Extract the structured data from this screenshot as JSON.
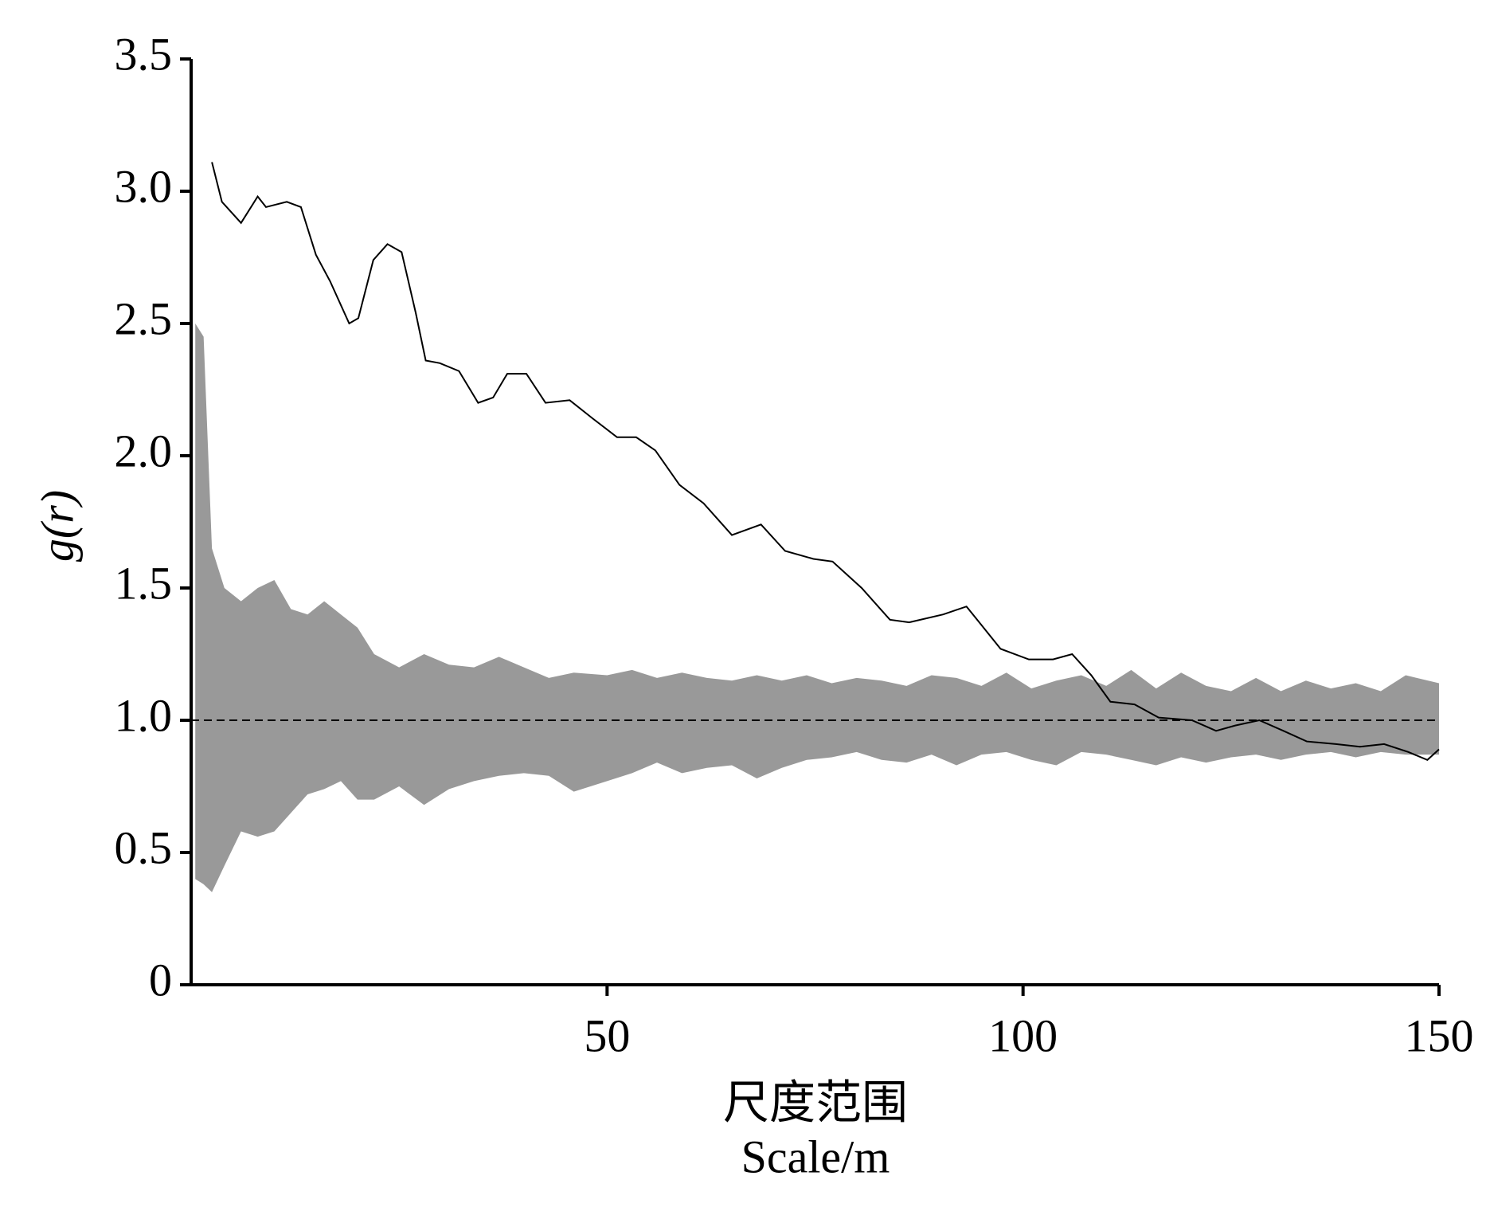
{
  "chart_data": {
    "type": "line",
    "y_label": "g(r)",
    "x_label": [
      "尺度范围",
      "Scale/m"
    ],
    "xlim": [
      0,
      150
    ],
    "xticks": [
      50,
      100,
      150
    ],
    "ylim": [
      0,
      3.5
    ],
    "yticks": [
      0,
      0.5,
      {
        "value": 1,
        "label": "1.0"
      },
      1.5,
      {
        "value": 2,
        "label": "2.0"
      },
      2.5,
      {
        "value": 3,
        "label": "3.0"
      },
      3.5
    ],
    "reference_line": 1,
    "envelope": {
      "color": "#999999",
      "x": [
        0.5,
        1.5,
        2.5,
        4,
        6,
        8,
        10,
        12,
        14,
        16,
        18,
        20,
        22,
        25,
        28,
        31,
        34,
        37,
        40,
        43,
        46,
        50,
        53,
        56,
        59,
        62,
        65,
        68,
        71,
        74,
        77,
        80,
        83,
        86,
        89,
        92,
        95,
        98,
        101,
        104,
        107,
        110,
        113,
        116,
        119,
        122,
        125,
        128,
        131,
        134,
        137,
        140,
        143,
        146,
        150
      ],
      "upper": [
        2.5,
        2.45,
        1.65,
        1.5,
        1.45,
        1.5,
        1.53,
        1.42,
        1.4,
        1.45,
        1.4,
        1.35,
        1.25,
        1.2,
        1.25,
        1.21,
        1.2,
        1.24,
        1.2,
        1.16,
        1.18,
        1.17,
        1.19,
        1.16,
        1.18,
        1.16,
        1.15,
        1.17,
        1.15,
        1.17,
        1.14,
        1.16,
        1.15,
        1.13,
        1.17,
        1.16,
        1.13,
        1.18,
        1.12,
        1.15,
        1.17,
        1.13,
        1.19,
        1.12,
        1.18,
        1.13,
        1.11,
        1.16,
        1.11,
        1.15,
        1.12,
        1.14,
        1.11,
        1.17,
        1.14
      ],
      "lower": [
        0.4,
        0.38,
        0.35,
        0.45,
        0.58,
        0.56,
        0.58,
        0.65,
        0.72,
        0.74,
        0.77,
        0.7,
        0.7,
        0.75,
        0.68,
        0.74,
        0.77,
        0.79,
        0.8,
        0.79,
        0.73,
        0.77,
        0.8,
        0.84,
        0.8,
        0.82,
        0.83,
        0.78,
        0.82,
        0.85,
        0.86,
        0.88,
        0.85,
        0.84,
        0.87,
        0.83,
        0.87,
        0.88,
        0.85,
        0.83,
        0.88,
        0.87,
        0.85,
        0.83,
        0.86,
        0.84,
        0.86,
        0.87,
        0.85,
        0.87,
        0.88,
        0.86,
        0.88,
        0.87,
        0.87
      ]
    },
    "line": {
      "color": "#000000",
      "x": [
        2.5,
        3.7,
        6,
        8,
        9,
        11.5,
        13.2,
        15,
        16.7,
        19,
        20.1,
        21.9,
        23.6,
        25.3,
        27,
        28.2,
        29.9,
        32.2,
        34.5,
        36.3,
        38,
        40.3,
        42.6,
        45.5,
        48.3,
        51.2,
        53.5,
        55.8,
        58.7,
        61.6,
        65,
        68.5,
        71.4,
        74.8,
        77.1,
        80.6,
        84,
        86.3,
        90.4,
        93.2,
        95,
        97.3,
        100.7,
        103.6,
        105.9,
        108.2,
        110.5,
        113.4,
        116.3,
        120.3,
        123.2,
        125.5,
        128.4,
        131.3,
        134.1,
        137.6,
        140.5,
        143.4,
        146.3,
        148.6,
        150
      ],
      "values": [
        3.11,
        2.96,
        2.88,
        2.98,
        2.94,
        2.96,
        2.94,
        2.76,
        2.66,
        2.5,
        2.52,
        2.74,
        2.8,
        2.77,
        2.54,
        2.36,
        2.35,
        2.32,
        2.2,
        2.22,
        2.31,
        2.31,
        2.2,
        2.21,
        2.14,
        2.07,
        2.07,
        2.02,
        1.89,
        1.82,
        1.7,
        1.74,
        1.64,
        1.61,
        1.6,
        1.5,
        1.38,
        1.37,
        1.4,
        1.43,
        1.36,
        1.27,
        1.23,
        1.23,
        1.25,
        1.17,
        1.07,
        1.06,
        1.01,
        1.0,
        0.96,
        0.98,
        1.0,
        0.96,
        0.92,
        0.91,
        0.9,
        0.91,
        0.88,
        0.85,
        0.89
      ]
    }
  }
}
